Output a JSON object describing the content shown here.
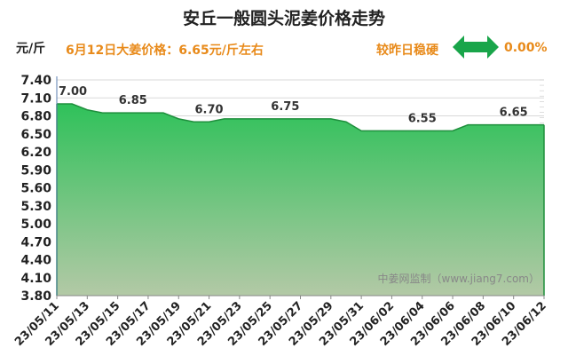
{
  "header": {
    "title": "安丘一般圆头泥姜价格走势",
    "unit": "元/斤",
    "price_line": "6月12日大姜价格：6.65元/斤左右",
    "compare_label": "较昨日稳硬",
    "compare_value": "0.00%",
    "compare_icon": "double-arrow-icon",
    "accent_color": "#e88a1a",
    "arrow_color": "#19a54a"
  },
  "watermark": "中姜网监制（www.jiang7.com）",
  "chart_data": {
    "type": "area",
    "x": [
      "23/05/11",
      "23/05/12",
      "23/05/13",
      "23/05/14",
      "23/05/15",
      "23/05/16",
      "23/05/17",
      "23/05/18",
      "23/05/19",
      "23/05/20",
      "23/05/21",
      "23/05/22",
      "23/05/23",
      "23/05/24",
      "23/05/25",
      "23/05/26",
      "23/05/27",
      "23/05/28",
      "23/05/29",
      "23/05/30",
      "23/05/31",
      "23/06/01",
      "23/06/02",
      "23/06/03",
      "23/06/04",
      "23/06/05",
      "23/06/06",
      "23/06/07",
      "23/06/08",
      "23/06/09",
      "23/06/10",
      "23/06/11",
      "23/06/12"
    ],
    "values": [
      7.0,
      7.0,
      6.9,
      6.85,
      6.85,
      6.85,
      6.85,
      6.85,
      6.75,
      6.7,
      6.7,
      6.75,
      6.75,
      6.75,
      6.75,
      6.75,
      6.75,
      6.75,
      6.75,
      6.7,
      6.55,
      6.55,
      6.55,
      6.55,
      6.55,
      6.55,
      6.55,
      6.65,
      6.65,
      6.65,
      6.65,
      6.65,
      6.65
    ],
    "tick_labels": [
      "23/05/11",
      "23/05/13",
      "23/05/15",
      "23/05/17",
      "23/05/19",
      "23/05/21",
      "23/05/23",
      "23/05/25",
      "23/05/27",
      "23/05/29",
      "23/05/31",
      "23/06/02",
      "23/06/04",
      "23/06/06",
      "23/06/08",
      "23/06/10",
      "23/06/12"
    ],
    "yticks": [
      3.8,
      4.1,
      4.4,
      4.7,
      5.0,
      5.3,
      5.6,
      5.9,
      6.2,
      6.5,
      6.8,
      7.1,
      7.4
    ],
    "ylim": [
      3.8,
      7.4
    ],
    "data_labels": [
      {
        "index": 0,
        "text": "7.00"
      },
      {
        "index": 5,
        "text": "6.85"
      },
      {
        "index": 10,
        "text": "6.70"
      },
      {
        "index": 15,
        "text": "6.75"
      },
      {
        "index": 24,
        "text": "6.55"
      },
      {
        "index": 30,
        "text": "6.65"
      }
    ],
    "title": "安丘一般圆头泥姜价格走势",
    "xlabel": "",
    "ylabel": "元/斤",
    "grid": "horizontal",
    "legend": "none",
    "line_color": "#1e8f3c",
    "fill_top_color": "#2fc15a",
    "fill_bottom_color": "#b3c9a6"
  }
}
